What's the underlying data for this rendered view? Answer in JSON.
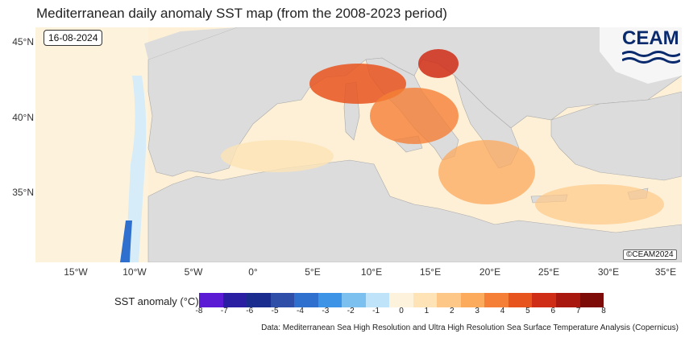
{
  "title": "Mediterranean daily anomaly SST map (from the 2008-2023 period)",
  "date_label": "16-08-2024",
  "logo_text": "CEAM",
  "copyright": "©CEAM2024",
  "y_axis": [
    "45°N",
    "40°N",
    "35°N"
  ],
  "x_axis": [
    "15°W",
    "10°W",
    "5°W",
    "0°",
    "5°E",
    "10°E",
    "15°E",
    "20°E",
    "25°E",
    "30°E",
    "35°E"
  ],
  "legend": {
    "title": "SST anomaly (°C)",
    "ticks": [
      "-8",
      "-7",
      "-6",
      "-5",
      "-4",
      "-3",
      "-2",
      "-1",
      "0",
      "1",
      "2",
      "3",
      "4",
      "5",
      "6",
      "7",
      "8"
    ],
    "colors": [
      "#5b1bd4",
      "#2a1fa3",
      "#1b2c8f",
      "#2e4ea8",
      "#2f6fce",
      "#3d93e6",
      "#7cc0f0",
      "#bfe3f8",
      "#fdf3dc",
      "#fde3b5",
      "#fdc887",
      "#fcaa5c",
      "#f57f36",
      "#e8541e",
      "#cf2d16",
      "#a9180e",
      "#7d0c08"
    ]
  },
  "credit": "Data: Mediterranean Sea High Resolution and Ultra High Resolution Sea Surface Temperature Analysis (Copernicus)"
}
